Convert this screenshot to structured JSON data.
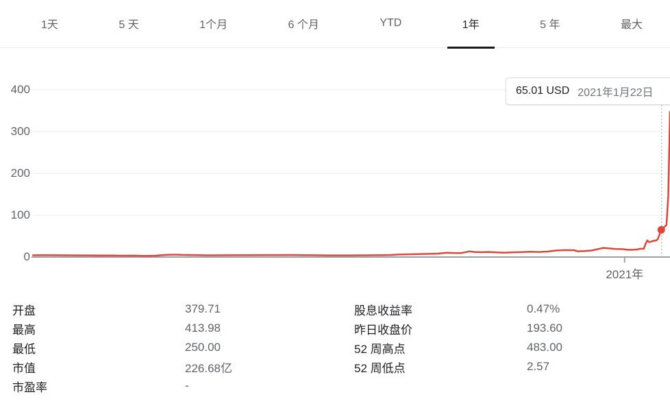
{
  "tabs": {
    "items": [
      {
        "label": "1天",
        "active": false
      },
      {
        "label": "5 天",
        "active": false
      },
      {
        "label": "1个月",
        "active": false
      },
      {
        "label": "6 个月",
        "active": false
      },
      {
        "label": "YTD",
        "active": false
      },
      {
        "label": "1年",
        "active": true
      },
      {
        "label": "5 年",
        "active": false
      },
      {
        "label": "最大",
        "active": false
      }
    ]
  },
  "tooltip": {
    "price": "65.01 USD",
    "date": "2021年1月22日"
  },
  "chart_data": {
    "type": "line",
    "title": "",
    "xlabel": "",
    "ylabel": "",
    "line_color": "#e0453a",
    "grid": true,
    "y_axis": {
      "ticks": [
        0,
        100,
        200,
        300,
        400
      ],
      "ylim": [
        0,
        500
      ]
    },
    "x_axis": {
      "tick_label": "2021年",
      "tick_day": 339,
      "total_days": 365
    },
    "marker": {
      "day": 360,
      "value": 65.01
    },
    "series": [
      {
        "name": "price-usd",
        "points": [
          [
            0,
            4.3
          ],
          [
            8,
            4.5
          ],
          [
            15,
            4.2
          ],
          [
            22,
            4.1
          ],
          [
            30,
            4.0
          ],
          [
            38,
            3.7
          ],
          [
            45,
            3.8
          ],
          [
            52,
            3.2
          ],
          [
            58,
            3.4
          ],
          [
            63,
            3.0
          ],
          [
            66,
            2.8
          ],
          [
            70,
            3.2
          ],
          [
            74,
            4.6
          ],
          [
            78,
            5.5
          ],
          [
            82,
            5.7
          ],
          [
            86,
            5.1
          ],
          [
            92,
            4.8
          ],
          [
            100,
            4.1
          ],
          [
            108,
            4.2
          ],
          [
            116,
            4.4
          ],
          [
            124,
            4.6
          ],
          [
            132,
            4.8
          ],
          [
            140,
            4.8
          ],
          [
            148,
            4.9
          ],
          [
            155,
            4.5
          ],
          [
            162,
            4.2
          ],
          [
            170,
            4.0
          ],
          [
            178,
            4.0
          ],
          [
            186,
            4.1
          ],
          [
            194,
            4.3
          ],
          [
            200,
            4.4
          ],
          [
            205,
            4.9
          ],
          [
            210,
            6.0
          ],
          [
            215,
            6.6
          ],
          [
            220,
            7.0
          ],
          [
            226,
            7.6
          ],
          [
            232,
            8.2
          ],
          [
            237,
            10.2
          ],
          [
            241,
            9.6
          ],
          [
            245,
            9.4
          ],
          [
            250,
            13.5
          ],
          [
            253,
            12.2
          ],
          [
            257,
            11.7
          ],
          [
            261,
            12.1
          ],
          [
            266,
            11.0
          ],
          [
            270,
            10.5
          ],
          [
            275,
            11.3
          ],
          [
            280,
            11.8
          ],
          [
            285,
            12.8
          ],
          [
            290,
            12.1
          ],
          [
            295,
            13.1
          ],
          [
            300,
            15.7
          ],
          [
            305,
            16.6
          ],
          [
            310,
            16.4
          ],
          [
            312,
            13.7
          ],
          [
            316,
            14.2
          ],
          [
            320,
            15.6
          ],
          [
            325,
            20.2
          ],
          [
            327,
            21.9
          ],
          [
            330,
            20.6
          ],
          [
            334,
            19.2
          ],
          [
            338,
            18.8
          ],
          [
            341,
            17.2
          ],
          [
            344,
            17.6
          ],
          [
            346,
            18.1
          ],
          [
            348,
            19.9
          ],
          [
            350,
            19.9
          ],
          [
            351,
            31.4
          ],
          [
            352,
            39.9
          ],
          [
            353,
            35.5
          ],
          [
            356,
            39.4
          ],
          [
            357,
            39.1
          ],
          [
            358,
            43.0
          ],
          [
            360,
            65.01
          ],
          [
            363,
            76.8
          ],
          [
            364,
            148.0
          ],
          [
            365,
            347.5
          ]
        ]
      }
    ]
  },
  "stats": {
    "left": [
      {
        "label": "开盘",
        "value": "379.71"
      },
      {
        "label": "最高",
        "value": "413.98"
      },
      {
        "label": "最低",
        "value": "250.00"
      },
      {
        "label": "市值",
        "value": "226.68亿"
      },
      {
        "label": "市盈率",
        "value": "-"
      }
    ],
    "right": [
      {
        "label": "股息收益率",
        "value": "0.47%"
      },
      {
        "label": "昨日收盘价",
        "value": "193.60"
      },
      {
        "label": "52 周高点",
        "value": "483.00"
      },
      {
        "label": "52 周低点",
        "value": "2.57"
      }
    ]
  },
  "colors": {
    "accent_red": "#e0453a",
    "baseline": "#9aa0a6",
    "gridline": "#f1f3f4",
    "text_primary": "#202124",
    "text_secondary": "#5f6368",
    "divider": "#e8eaed"
  }
}
